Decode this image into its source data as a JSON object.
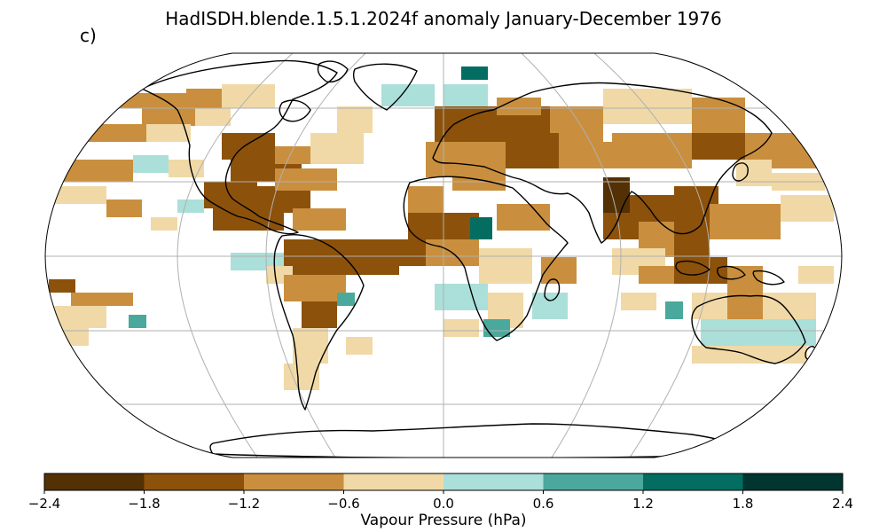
{
  "title": "HadISDH.blende.1.5.1.2024f anomaly January-December 1976",
  "panel_label": "c)",
  "colorbar": {
    "label": "Vapour Pressure (hPa)",
    "ticks": [
      "−2.4",
      "−1.8",
      "−1.2",
      "−0.6",
      "0.0",
      "0.6",
      "1.2",
      "1.8",
      "2.4"
    ],
    "range": [
      -2.4,
      2.4
    ],
    "bins": [
      {
        "from": -2.4,
        "to": -1.8,
        "color": "#543005"
      },
      {
        "from": -1.8,
        "to": -1.2,
        "color": "#8c510a"
      },
      {
        "from": -1.2,
        "to": -0.6,
        "color": "#c98f3e"
      },
      {
        "from": -0.6,
        "to": 0.0,
        "color": "#f0d9a6"
      },
      {
        "from": 0.0,
        "to": 0.6,
        "color": "#abdfd9"
      },
      {
        "from": 0.6,
        "to": 1.2,
        "color": "#4aa89c"
      },
      {
        "from": 1.2,
        "to": 1.8,
        "color": "#036d61"
      },
      {
        "from": 1.8,
        "to": 2.4,
        "color": "#013530"
      }
    ]
  },
  "map": {
    "projection": "Robinson",
    "graticule": true,
    "land_outline_color": "#000000",
    "no_data_color": "#ffffff",
    "anomaly_regions": [
      {
        "region": "North America east/central",
        "level": "dry-strong",
        "color": "#8c510a"
      },
      {
        "region": "Mexico and Caribbean",
        "level": "dry-strong",
        "color": "#8c510a"
      },
      {
        "region": "Canada",
        "level": "dry-moderate",
        "color": "#c98f3e"
      },
      {
        "region": "Europe",
        "level": "dry-strong",
        "color": "#8c510a"
      },
      {
        "region": "Siberia",
        "level": "dry-moderate",
        "color": "#c98f3e"
      },
      {
        "region": "India",
        "level": "dry-extreme",
        "color": "#543005"
      },
      {
        "region": "Southeast Asia",
        "level": "dry-strong",
        "color": "#8c510a"
      },
      {
        "region": "Sahel",
        "level": "dry-strong",
        "color": "#8c510a"
      },
      {
        "region": "Central Africa",
        "level": "wet-strong",
        "color": "#036d61"
      },
      {
        "region": "Southern Africa",
        "level": "wet-moderate",
        "color": "#4aa89c"
      },
      {
        "region": "Australia",
        "level": "wet-weak",
        "color": "#abdfd9"
      },
      {
        "region": "South America",
        "level": "dry-weak",
        "color": "#f0d9a6"
      }
    ]
  }
}
